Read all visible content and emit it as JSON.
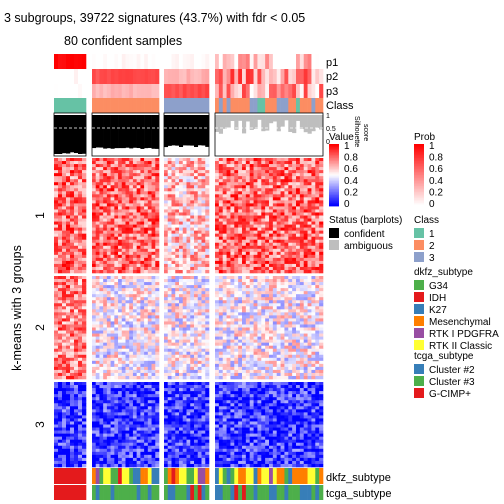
{
  "title": "3 subgroups, 39722 signatures (43.7%) with fdr < 0.05",
  "subtitle": "80 confident samples",
  "row_axis_label": "k-means with 3 groups",
  "row_group_labels": [
    "1",
    "2",
    "3"
  ],
  "track_labels": {
    "p1": "p1",
    "p2": "p2",
    "p3": "p3",
    "class": "Class",
    "silhouette": "Silhouette\nscore",
    "dkfz": "dkfz_subtype",
    "tcga": "tcga_subtype"
  },
  "silhouette_ticks": [
    "1",
    "0.5",
    "0"
  ],
  "colors": {
    "prob_low": "#ffffff",
    "prob_high": "#ff0000",
    "value_low": "#0000ff",
    "value_mid": "#ffffff",
    "value_high": "#ff0000",
    "class1": "#66c2a5",
    "class2": "#fc8d62",
    "class3": "#8da0cb",
    "confident": "#000000",
    "ambiguous": "#bebebe",
    "G34": "#4daf4a",
    "IDH": "#e41a1c",
    "K27": "#377eb8",
    "Mesenchymal": "#ff7f00",
    "RTK_I_PDGFRA": "#984ea3",
    "RTK_II_Classic": "#ffff33",
    "Cluster2": "#377eb8",
    "Cluster3": "#4daf4a",
    "G_CIMP": "#e41a1c"
  },
  "legends": {
    "value": {
      "title": "Value",
      "ticks": [
        "1",
        "0.8",
        "0.6",
        "0.4",
        "0.2",
        "0"
      ]
    },
    "prob": {
      "title": "Prob",
      "ticks": [
        "1",
        "0.8",
        "0.6",
        "0.4",
        "0.2",
        "0"
      ]
    },
    "status": {
      "title": "Status (barplots)",
      "items": [
        "confident",
        "ambiguous"
      ]
    },
    "class": {
      "title": "Class",
      "items": [
        "1",
        "2",
        "3"
      ]
    },
    "dkfz": {
      "title": "dkfz_subtype",
      "items": [
        "G34",
        "IDH",
        "K27",
        "Mesenchymal",
        "RTK I PDGFRA",
        "RTK II Classic"
      ]
    },
    "tcga": {
      "title": "tcga_subtype",
      "items": [
        "Cluster #2",
        "Cluster #3",
        "G-CIMP+"
      ]
    }
  },
  "chart_data": {
    "type": "heatmap",
    "description_of_layout": "",
    "column_groups": [
      {
        "class": "1",
        "n": 8,
        "status": "confident",
        "p1": 1.0,
        "p2": 0.0,
        "p3": 0.0,
        "silhouette": 0.98,
        "dkfz": "IDH",
        "tcga": "G-CIMP+"
      },
      {
        "class": "2",
        "n": 18,
        "status": "confident",
        "p1": 0.0,
        "p2": 0.7,
        "p3": 0.3,
        "silhouette": 0.85,
        "dkfz": "mixed",
        "tcga": "Cluster #3"
      },
      {
        "class": "3",
        "n": 12,
        "status": "confident",
        "p1": 0.0,
        "p2": 0.3,
        "p3": 0.7,
        "silhouette": 0.8,
        "dkfz": "mixed",
        "tcga": "mixed"
      },
      {
        "class": "mixed",
        "n": 28,
        "status": "ambiguous",
        "p1": 0.2,
        "p2": 0.45,
        "p3": 0.35,
        "silhouette": 0.3,
        "dkfz": "mixed",
        "tcga": "mixed"
      }
    ],
    "row_groups": [
      {
        "name": "1",
        "level": 0.78
      },
      {
        "name": "2",
        "level": 0.5
      },
      {
        "name": "3",
        "level": 0.12
      }
    ],
    "value_range": [
      0,
      1
    ]
  }
}
